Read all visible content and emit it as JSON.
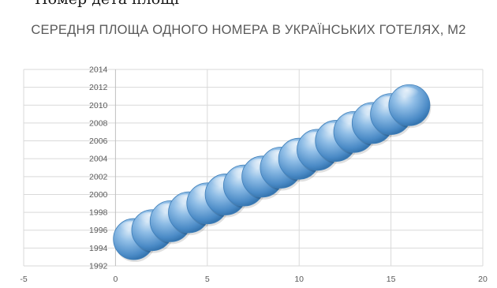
{
  "page": {
    "top_text": "Номер  дета  площі"
  },
  "chart_data": {
    "type": "scatter",
    "title": "СЕРЕДНЯ ПЛОЩА ОДНОГО НОМЕРА В УКРАЇНСЬКИХ ГОТЕЛЯХ, М2",
    "xlabel": "",
    "ylabel": "",
    "xlim": [
      -5,
      20
    ],
    "ylim": [
      1992,
      2014
    ],
    "xticks": [
      -5,
      0,
      5,
      10,
      15,
      20
    ],
    "yticks": [
      1992,
      1994,
      1996,
      1998,
      2000,
      2002,
      2004,
      2006,
      2008,
      2010,
      2012,
      2014
    ],
    "grid": true,
    "marker": "bubble",
    "series": [
      {
        "color": "#5b9bd5",
        "x": [
          1,
          2,
          3,
          4,
          5,
          6,
          7,
          8,
          9,
          10,
          11,
          12,
          13,
          14,
          15,
          16
        ],
        "y": [
          1995,
          1996,
          1997,
          1998,
          1999,
          2000,
          2001,
          2002,
          2003,
          2004,
          2005,
          2006,
          2007,
          2008,
          2009,
          2010
        ]
      }
    ]
  }
}
